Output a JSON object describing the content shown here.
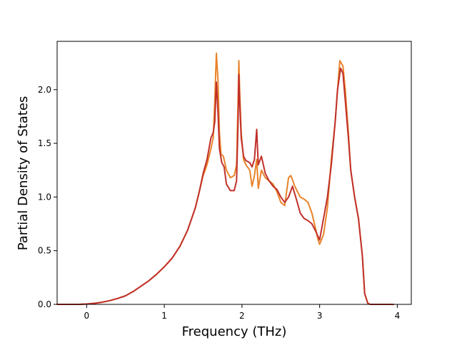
{
  "chart_data": {
    "type": "line",
    "title": "",
    "xlabel": "Frequency (THz)",
    "ylabel": "Partial Density of States",
    "xlim": [
      -0.38,
      4.18
    ],
    "ylim": [
      0,
      2.45
    ],
    "xticks": [
      0,
      1,
      2,
      3,
      4
    ],
    "xtick_labels": [
      "0",
      "1",
      "2",
      "3",
      "4"
    ],
    "yticks": [
      0,
      0.5,
      1,
      1.5,
      2
    ],
    "ytick_labels": [
      "0.0",
      "0.5",
      "1.0",
      "1.5",
      "2.0"
    ],
    "grid": false,
    "legend": "none",
    "series": [
      {
        "color": "#e8832a",
        "points": [
          [
            -0.38,
            0
          ],
          [
            -0.1,
            0
          ],
          [
            0.0,
            0.003
          ],
          [
            0.1,
            0.01
          ],
          [
            0.2,
            0.02
          ],
          [
            0.3,
            0.035
          ],
          [
            0.4,
            0.055
          ],
          [
            0.5,
            0.08
          ],
          [
            0.55,
            0.1
          ],
          [
            0.6,
            0.12
          ],
          [
            0.7,
            0.17
          ],
          [
            0.8,
            0.22
          ],
          [
            0.9,
            0.28
          ],
          [
            1.0,
            0.35
          ],
          [
            1.1,
            0.43
          ],
          [
            1.2,
            0.54
          ],
          [
            1.3,
            0.69
          ],
          [
            1.4,
            0.9
          ],
          [
            1.45,
            1.05
          ],
          [
            1.5,
            1.2
          ],
          [
            1.55,
            1.3
          ],
          [
            1.6,
            1.45
          ],
          [
            1.63,
            1.55
          ],
          [
            1.65,
            1.9
          ],
          [
            1.67,
            2.34
          ],
          [
            1.69,
            2.1
          ],
          [
            1.71,
            1.6
          ],
          [
            1.73,
            1.4
          ],
          [
            1.76,
            1.38
          ],
          [
            1.8,
            1.25
          ],
          [
            1.85,
            1.18
          ],
          [
            1.9,
            1.2
          ],
          [
            1.93,
            1.3
          ],
          [
            1.95,
            1.9
          ],
          [
            1.96,
            2.27
          ],
          [
            1.97,
            2.0
          ],
          [
            1.99,
            1.6
          ],
          [
            2.02,
            1.35
          ],
          [
            2.05,
            1.3
          ],
          [
            2.1,
            1.25
          ],
          [
            2.13,
            1.1
          ],
          [
            2.16,
            1.2
          ],
          [
            2.19,
            1.35
          ],
          [
            2.21,
            1.08
          ],
          [
            2.25,
            1.25
          ],
          [
            2.3,
            1.18
          ],
          [
            2.35,
            1.15
          ],
          [
            2.4,
            1.12
          ],
          [
            2.45,
            1.05
          ],
          [
            2.5,
            0.95
          ],
          [
            2.55,
            0.92
          ],
          [
            2.6,
            1.18
          ],
          [
            2.63,
            1.2
          ],
          [
            2.68,
            1.1
          ],
          [
            2.75,
            1.0
          ],
          [
            2.8,
            0.98
          ],
          [
            2.85,
            0.95
          ],
          [
            2.9,
            0.85
          ],
          [
            2.95,
            0.7
          ],
          [
            2.98,
            0.6
          ],
          [
            3.0,
            0.56
          ],
          [
            3.05,
            0.65
          ],
          [
            3.1,
            0.9
          ],
          [
            3.15,
            1.35
          ],
          [
            3.2,
            1.7
          ],
          [
            3.23,
            2.0
          ],
          [
            3.26,
            2.27
          ],
          [
            3.3,
            2.22
          ],
          [
            3.33,
            2.0
          ],
          [
            3.37,
            1.6
          ],
          [
            3.4,
            1.25
          ],
          [
            3.45,
            1.0
          ],
          [
            3.5,
            0.8
          ],
          [
            3.55,
            0.45
          ],
          [
            3.58,
            0.1
          ],
          [
            3.62,
            0.01
          ],
          [
            3.65,
            0
          ],
          [
            3.95,
            0
          ]
        ]
      },
      {
        "color": "#c0302a",
        "points": [
          [
            -0.38,
            0
          ],
          [
            -0.1,
            0
          ],
          [
            0.0,
            0.003
          ],
          [
            0.1,
            0.01
          ],
          [
            0.2,
            0.02
          ],
          [
            0.3,
            0.035
          ],
          [
            0.4,
            0.055
          ],
          [
            0.5,
            0.08
          ],
          [
            0.55,
            0.1
          ],
          [
            0.6,
            0.12
          ],
          [
            0.7,
            0.17
          ],
          [
            0.8,
            0.22
          ],
          [
            0.9,
            0.28
          ],
          [
            1.0,
            0.35
          ],
          [
            1.1,
            0.43
          ],
          [
            1.2,
            0.54
          ],
          [
            1.3,
            0.69
          ],
          [
            1.4,
            0.9
          ],
          [
            1.45,
            1.05
          ],
          [
            1.5,
            1.22
          ],
          [
            1.55,
            1.35
          ],
          [
            1.6,
            1.55
          ],
          [
            1.63,
            1.6
          ],
          [
            1.65,
            1.7
          ],
          [
            1.67,
            2.07
          ],
          [
            1.69,
            1.8
          ],
          [
            1.71,
            1.45
          ],
          [
            1.74,
            1.32
          ],
          [
            1.77,
            1.28
          ],
          [
            1.8,
            1.12
          ],
          [
            1.85,
            1.06
          ],
          [
            1.9,
            1.06
          ],
          [
            1.93,
            1.15
          ],
          [
            1.95,
            1.7
          ],
          [
            1.96,
            2.14
          ],
          [
            1.97,
            1.9
          ],
          [
            1.99,
            1.55
          ],
          [
            2.02,
            1.38
          ],
          [
            2.05,
            1.34
          ],
          [
            2.1,
            1.32
          ],
          [
            2.13,
            1.28
          ],
          [
            2.16,
            1.35
          ],
          [
            2.19,
            1.63
          ],
          [
            2.21,
            1.3
          ],
          [
            2.25,
            1.38
          ],
          [
            2.3,
            1.22
          ],
          [
            2.35,
            1.15
          ],
          [
            2.4,
            1.1
          ],
          [
            2.45,
            1.07
          ],
          [
            2.5,
            1.0
          ],
          [
            2.55,
            0.95
          ],
          [
            2.6,
            1.0
          ],
          [
            2.65,
            1.1
          ],
          [
            2.7,
            0.98
          ],
          [
            2.75,
            0.85
          ],
          [
            2.8,
            0.8
          ],
          [
            2.85,
            0.78
          ],
          [
            2.9,
            0.75
          ],
          [
            2.95,
            0.68
          ],
          [
            3.0,
            0.6
          ],
          [
            3.05,
            0.8
          ],
          [
            3.1,
            1.0
          ],
          [
            3.15,
            1.3
          ],
          [
            3.2,
            1.7
          ],
          [
            3.23,
            2.0
          ],
          [
            3.27,
            2.2
          ],
          [
            3.3,
            2.15
          ],
          [
            3.33,
            1.9
          ],
          [
            3.37,
            1.55
          ],
          [
            3.4,
            1.25
          ],
          [
            3.45,
            1.0
          ],
          [
            3.5,
            0.8
          ],
          [
            3.55,
            0.45
          ],
          [
            3.58,
            0.1
          ],
          [
            3.62,
            0.01
          ],
          [
            3.65,
            0
          ],
          [
            3.95,
            0
          ]
        ]
      }
    ]
  }
}
